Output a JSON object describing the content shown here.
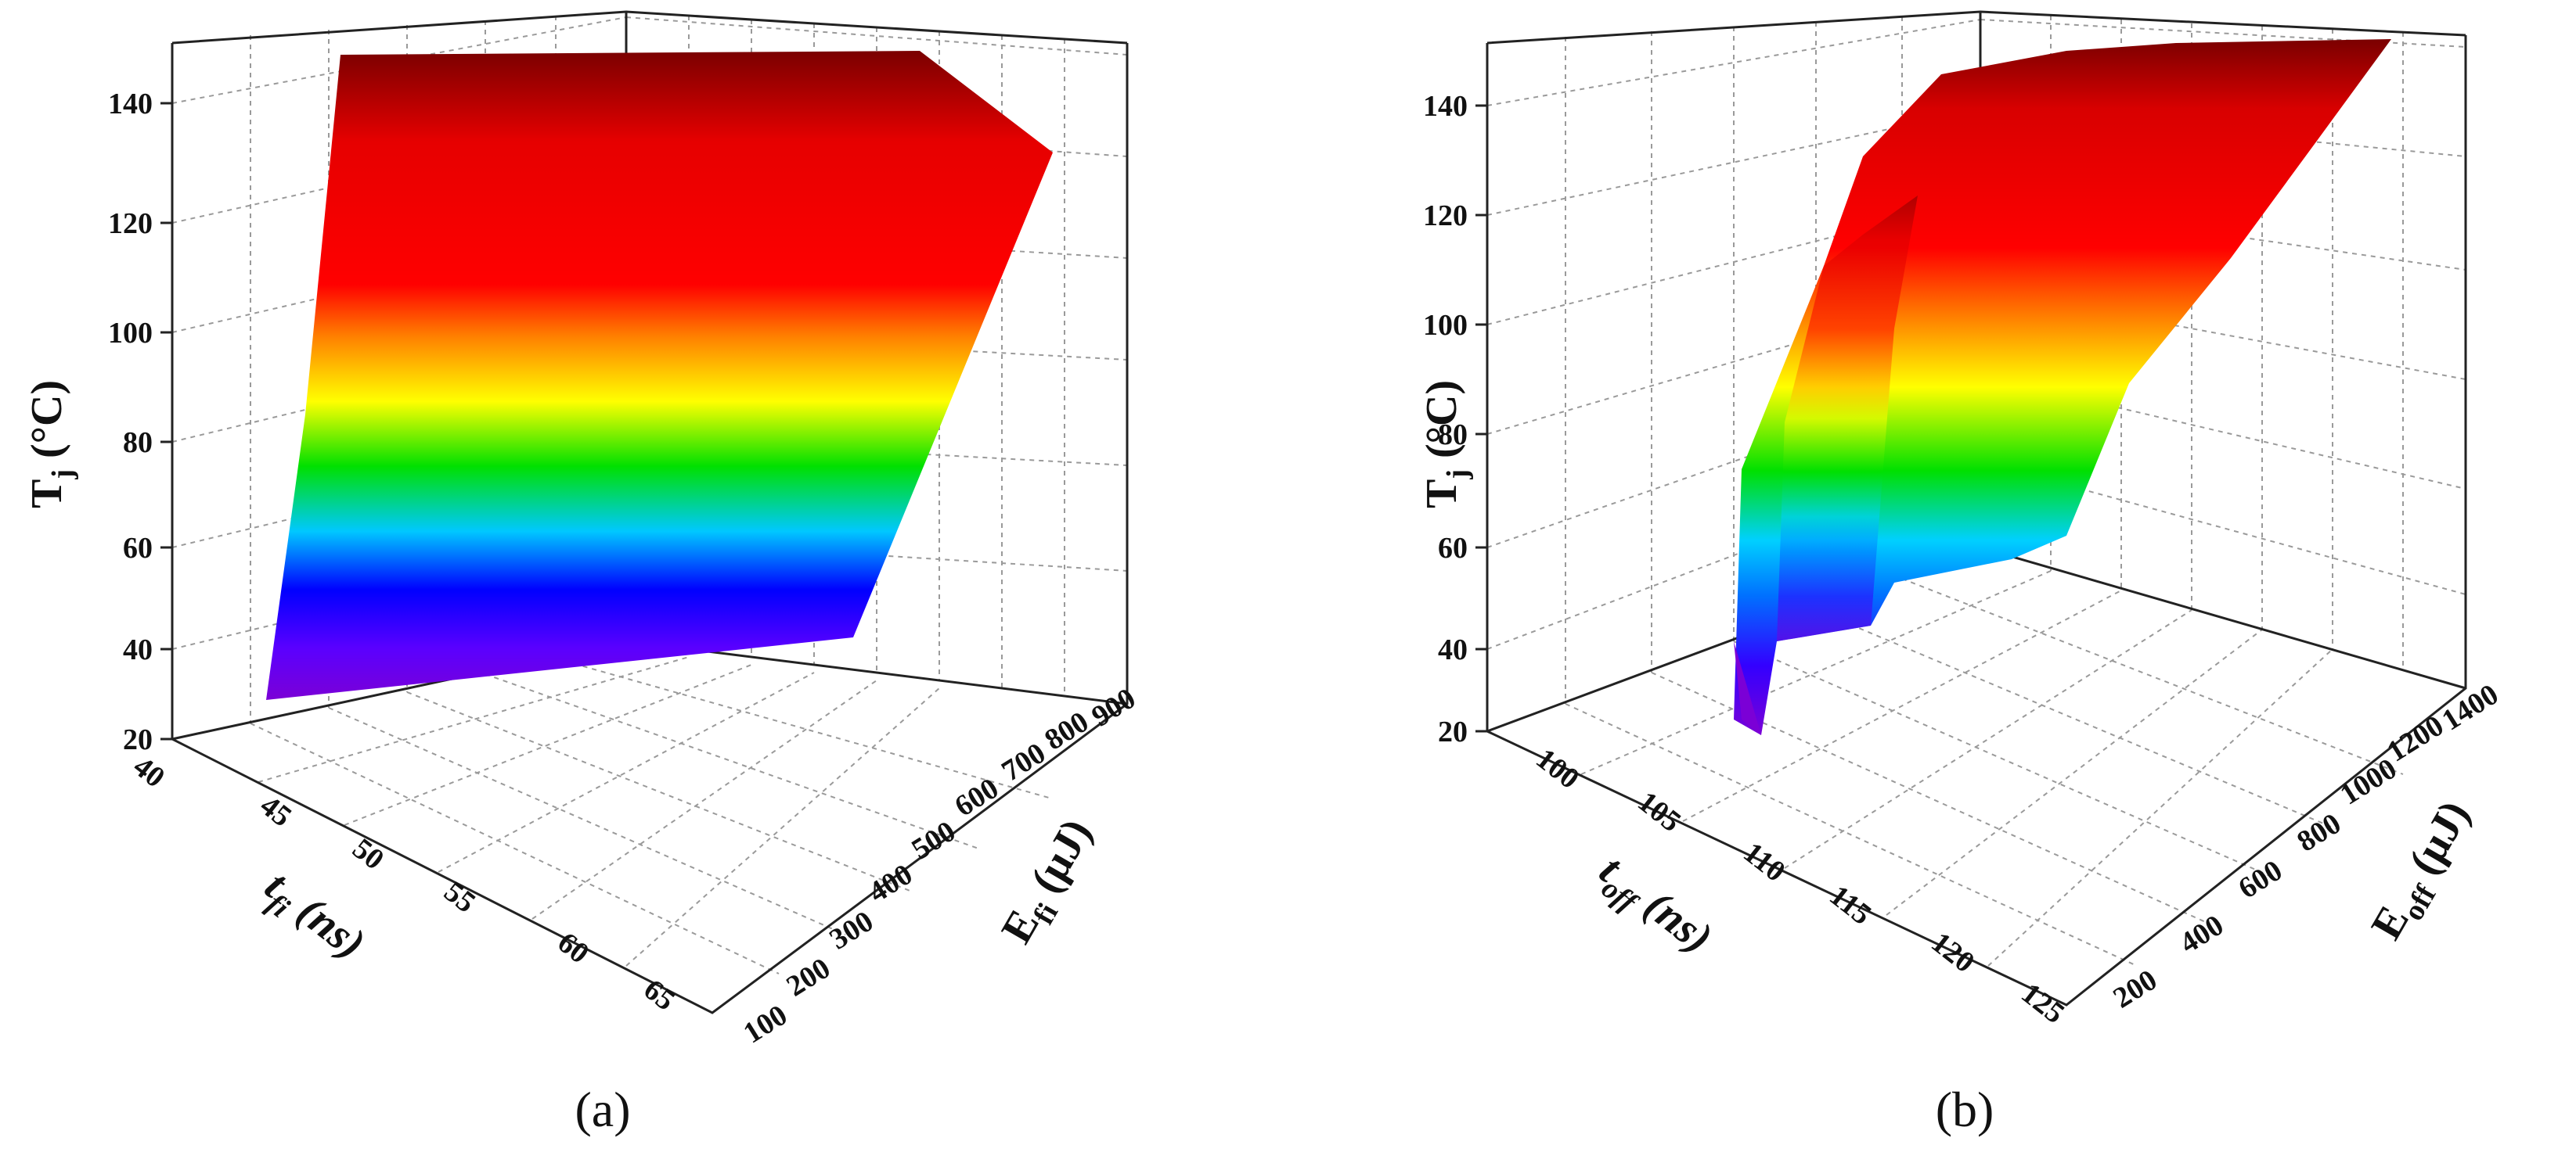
{
  "figure": {
    "panels": [
      {
        "id": "a",
        "caption": "(a)",
        "z_label_main": "T",
        "z_label_sub": "j",
        "z_label_unit": " (°C)",
        "x_label_main": "t",
        "x_label_sub": "fi",
        "x_label_unit": " (ns)",
        "y_label_main": "E",
        "y_label_sub": "fi",
        "y_label_unit": " (μJ)"
      },
      {
        "id": "b",
        "caption": "(b)",
        "z_label_main": "T",
        "z_label_sub": "j",
        "z_label_unit": " (°C)",
        "x_label_main": "t",
        "x_label_sub": "off",
        "x_label_unit": " (ns)",
        "y_label_main": "E",
        "y_label_sub": "off",
        "y_label_unit": " (μJ)"
      }
    ]
  },
  "chart_data": [
    {
      "type": "surface",
      "title": "",
      "xlabel": "t_fi (ns)",
      "ylabel": "E_fi (μJ)",
      "zlabel": "T_j (°C)",
      "x_ticks": [
        "40",
        "45",
        "50",
        "55",
        "60",
        "65"
      ],
      "y_ticks": [
        "100",
        "200",
        "300",
        "400",
        "500",
        "600",
        "700",
        "800",
        "900"
      ],
      "z_ticks": [
        "20",
        "40",
        "60",
        "80",
        "100",
        "120",
        "140"
      ],
      "xlim": [
        40,
        65
      ],
      "ylim": [
        100,
        900
      ],
      "zlim": [
        20,
        150
      ],
      "colormap": [
        "#7b00d6",
        "#0000ff",
        "#00c8ff",
        "#00e000",
        "#ffff00",
        "#ff8000",
        "#ff0000",
        "#8b0000"
      ],
      "points": [
        {
          "x": 40,
          "y": 100,
          "z": 30
        },
        {
          "x": 40,
          "y": 900,
          "z": 148
        },
        {
          "x": 65,
          "y": 100,
          "z": 40
        },
        {
          "x": 65,
          "y": 900,
          "z": 148
        },
        {
          "x": 65,
          "y": 800,
          "z": 130
        }
      ],
      "grid": true
    },
    {
      "type": "surface",
      "title": "",
      "xlabel": "t_off (ns)",
      "ylabel": "E_off (μJ)",
      "zlabel": "T_j (°C)",
      "x_ticks": [
        "100",
        "105",
        "110",
        "115",
        "120",
        "125"
      ],
      "y_ticks": [
        "200",
        "400",
        "600",
        "800",
        "1000",
        "1200",
        "1400"
      ],
      "z_ticks": [
        "20",
        "40",
        "60",
        "80",
        "100",
        "120",
        "140"
      ],
      "xlim": [
        100,
        125
      ],
      "ylim": [
        100,
        1400
      ],
      "zlim": [
        20,
        150
      ],
      "colormap": [
        "#7b00d6",
        "#0000ff",
        "#00c8ff",
        "#00e000",
        "#ffff00",
        "#ff8000",
        "#ff0000",
        "#8b0000"
      ],
      "points": [
        {
          "x": 110,
          "y": 100,
          "z": 22
        },
        {
          "x": 112,
          "y": 300,
          "z": 40
        },
        {
          "x": 115,
          "y": 500,
          "z": 55
        },
        {
          "x": 118,
          "y": 800,
          "z": 90
        },
        {
          "x": 120,
          "y": 1100,
          "z": 125
        },
        {
          "x": 125,
          "y": 1400,
          "z": 150
        }
      ],
      "grid": true
    }
  ]
}
